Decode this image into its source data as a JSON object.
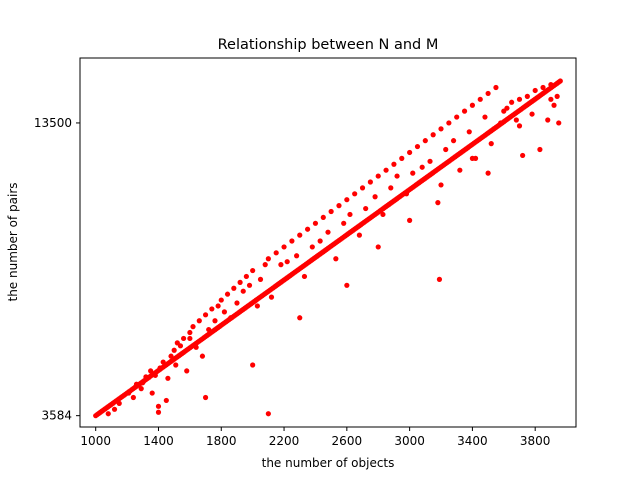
{
  "chart_data": {
    "type": "scatter",
    "title": "Relationship between N and M",
    "xlabel": "the number of objects",
    "ylabel": "the number of pairs",
    "xlim": [
      900,
      4060
    ],
    "ylim": [
      3200,
      15700
    ],
    "x_ticks": [
      1000,
      1400,
      1800,
      2200,
      2600,
      3000,
      3400,
      3800
    ],
    "y_ticks": [
      3584,
      13500
    ],
    "grid": false,
    "legend": "none",
    "color": "#ff0000",
    "series": [
      {
        "frontier_x_range": [
          1000,
          3960
        ],
        "frontier_step": 10,
        "frontier_y_range": [
          3584,
          14920
        ],
        "x": [
          1080,
          1120,
          1150,
          1210,
          1240,
          1260,
          1290,
          1300,
          1320,
          1350,
          1360,
          1380,
          1400,
          1400,
          1410,
          1430,
          1460,
          1480,
          1500,
          1510,
          1520,
          1540,
          1560,
          1580,
          1600,
          1620,
          1640,
          1660,
          1680,
          1700,
          1720,
          1740,
          1760,
          1780,
          1800,
          1820,
          1840,
          1860,
          1880,
          1900,
          1920,
          1940,
          1960,
          1980,
          2000,
          2030,
          2050,
          2080,
          2100,
          2120,
          2150,
          2180,
          2200,
          2220,
          2250,
          2280,
          2300,
          2330,
          2350,
          2380,
          2400,
          2430,
          2450,
          2480,
          2500,
          2530,
          2550,
          2580,
          2600,
          2620,
          2650,
          2680,
          2700,
          2720,
          2750,
          2780,
          2800,
          2830,
          2850,
          2880,
          2900,
          2920,
          2950,
          2980,
          3000,
          3020,
          3050,
          3080,
          3100,
          3130,
          3150,
          3180,
          3190,
          3200,
          3230,
          3250,
          3280,
          3300,
          3320,
          3350,
          3380,
          3400,
          3420,
          3450,
          3480,
          3500,
          3520,
          3550,
          3580,
          3600,
          3620,
          3650,
          3680,
          3700,
          3720,
          3750,
          3780,
          3800,
          3830,
          3850,
          3880,
          3900,
          3920,
          3940,
          3950,
          1700,
          2100,
          1600,
          1450,
          2000,
          2300,
          2600,
          2800,
          3000,
          3200,
          3400,
          3500,
          3700,
          3900
        ],
        "y": [
          3650,
          3800,
          4000,
          4350,
          4200,
          4650,
          4500,
          4700,
          4900,
          5100,
          4350,
          4950,
          3700,
          3900,
          5200,
          5400,
          4850,
          5600,
          5800,
          5300,
          6050,
          5950,
          6200,
          5100,
          6400,
          6600,
          5900,
          6800,
          5600,
          7000,
          6500,
          7200,
          6800,
          7300,
          7500,
          7100,
          7700,
          6900,
          7900,
          7400,
          8100,
          7800,
          8300,
          8000,
          8500,
          7300,
          8200,
          8700,
          8900,
          7600,
          9100,
          8700,
          9300,
          8800,
          9500,
          9000,
          9700,
          8300,
          9900,
          9300,
          10100,
          9500,
          10300,
          9800,
          10500,
          8900,
          10700,
          10100,
          10900,
          10400,
          11100,
          9700,
          11300,
          10600,
          11500,
          11000,
          11700,
          10400,
          11900,
          11300,
          12100,
          11700,
          12300,
          11100,
          12500,
          11800,
          12700,
          12000,
          12900,
          12200,
          13100,
          10800,
          8200,
          13300,
          12600,
          13500,
          12900,
          13700,
          11900,
          13900,
          13200,
          14100,
          12300,
          14300,
          13700,
          14500,
          12800,
          14700,
          13500,
          13900,
          14000,
          14200,
          13600,
          14300,
          12400,
          14400,
          13800,
          14600,
          12600,
          14700,
          13600,
          14800,
          14100,
          14400,
          13500,
          4200,
          3650,
          6200,
          4100,
          5300,
          6900,
          8000,
          9300,
          10200,
          11400,
          12300,
          11800,
          13400,
          14300
        ]
      }
    ]
  }
}
